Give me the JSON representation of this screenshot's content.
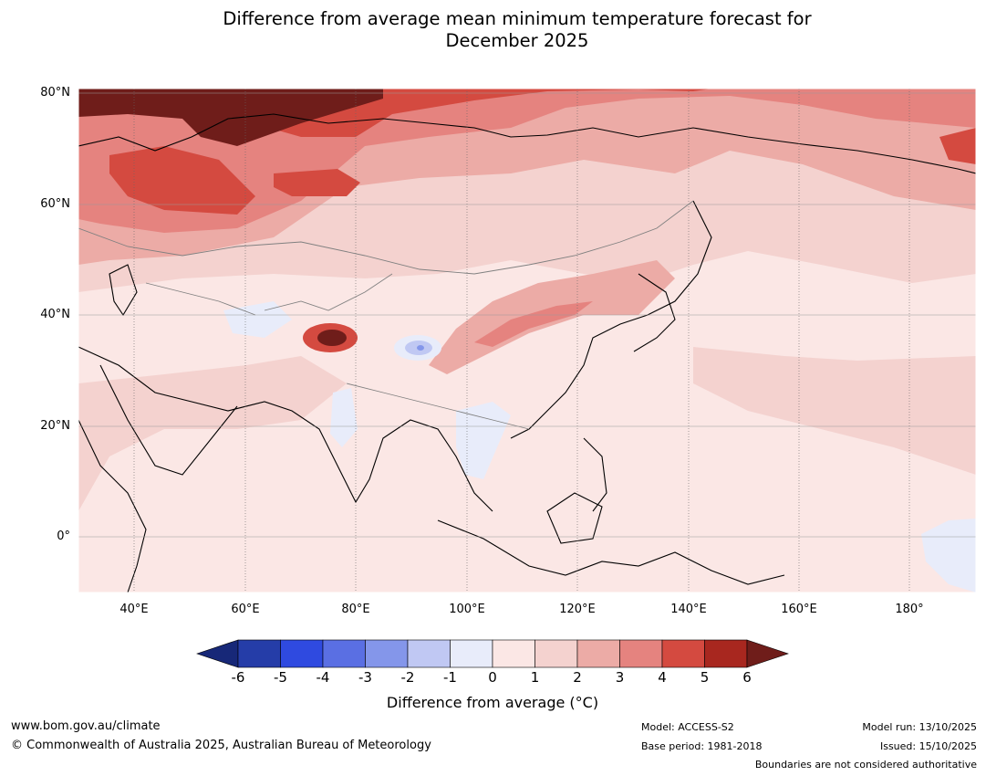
{
  "title": {
    "line1": "Difference from average mean minimum temperature forecast for",
    "line2": "December 2025"
  },
  "map": {
    "lat_labels": [
      "80°N",
      "60°N",
      "40°N",
      "20°N",
      "0°"
    ],
    "lon_labels": [
      "40°E",
      "60°E",
      "80°E",
      "100°E",
      "120°E",
      "140°E",
      "160°E",
      "180°"
    ],
    "background_color": "#fbe7e5"
  },
  "colorbar": {
    "ticks": [
      "-6",
      "-5",
      "-4",
      "-3",
      "-2",
      "-1",
      "0",
      "1",
      "2",
      "3",
      "4",
      "5",
      "6"
    ],
    "colors": [
      "#172878",
      "#253da8",
      "#2f4ae0",
      "#5a6fe3",
      "#8496ea",
      "#c0c8f3",
      "#e8ecfa",
      "#fbe7e5",
      "#f4d2cf",
      "#ecaba6",
      "#e5837f",
      "#d44a40",
      "#a8271f",
      "#6f1d1a"
    ],
    "title": "Difference from average (°C)"
  },
  "footer": {
    "website": "www.bom.gov.au/climate",
    "copyright": "© Commonwealth of Australia 2025, Australian Bureau of Meteorology",
    "model": "Model: ACCESS-S2",
    "base_period": "Base period: 1981-2018",
    "model_run": "Model run: 13/10/2025",
    "issued": "Issued: 15/10/2025",
    "disclaimer": "Boundaries are not considered authoritative"
  }
}
